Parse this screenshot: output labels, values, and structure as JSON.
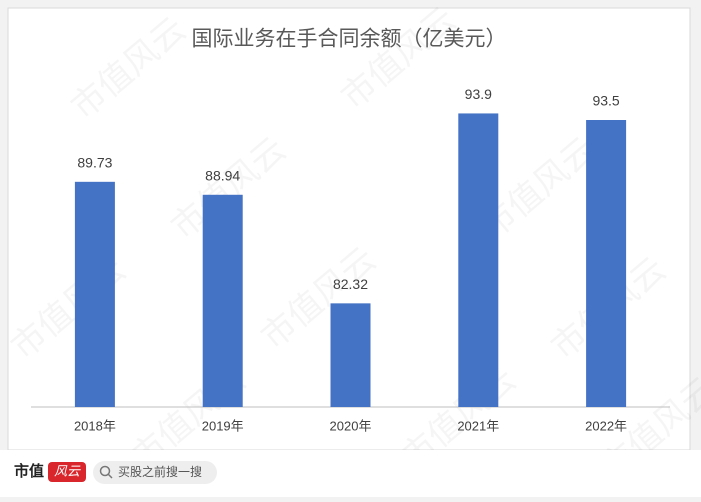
{
  "chart_data": {
    "type": "bar",
    "title": "国际业务在手合同余额（亿美元）",
    "categories": [
      "2018年",
      "2019年",
      "2020年",
      "2021年",
      "2022年"
    ],
    "values": [
      89.73,
      88.94,
      82.32,
      93.9,
      93.5
    ],
    "color": "#4472c4",
    "ylim": [
      76,
      96
    ],
    "grid": false
  },
  "watermark": "市值风云",
  "footer": {
    "brand_1": "市值",
    "brand_2": "风云",
    "search": "买股之前搜一搜"
  }
}
